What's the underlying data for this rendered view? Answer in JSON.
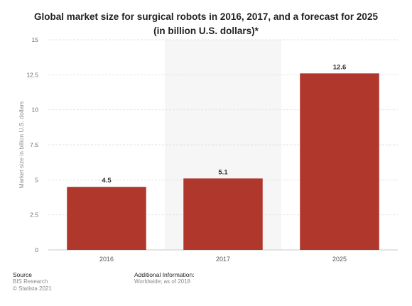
{
  "title_line1": "Global market size for surgical robots in 2016, 2017, and a forecast for 2025",
  "title_line2": "(in billion U.S. dollars)*",
  "chart_data": {
    "type": "bar",
    "categories": [
      "2016",
      "2017",
      "2025"
    ],
    "values": [
      4.5,
      5.1,
      12.6
    ],
    "value_labels": [
      "4.5",
      "5.1",
      "12.6"
    ],
    "ylabel": "Market size in billion U.S. dollars",
    "ylim": [
      0,
      15
    ],
    "yticks": [
      "0",
      "2.5",
      "5",
      "7.5",
      "10",
      "12.5",
      "15"
    ],
    "bar_color": "#b0372c",
    "grid": true,
    "highlighted_category": "2017"
  },
  "footer": {
    "source_heading": "Source",
    "source_name": "BIS Research",
    "copyright": "© Statista 2021",
    "info_heading": "Additional Information:",
    "info_text": "Worldwide; as of 2018"
  }
}
